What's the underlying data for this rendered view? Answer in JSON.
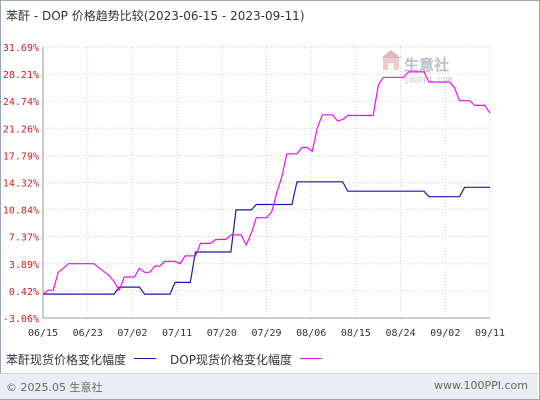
{
  "header": {
    "title": "苯酐 - DOP 价格趋势比较(2023-06-15 - 2023-09-11)"
  },
  "watermark": {
    "brand": "生意社",
    "url": "100PPI.COM"
  },
  "legend": {
    "items": [
      {
        "label": "苯酐现货价格变化幅度",
        "color": "#1a1aaa"
      },
      {
        "label": "DOP现货价格变化幅度",
        "color": "#ee11ee"
      }
    ]
  },
  "footer": {
    "copyright": "© 2025.05 生意社",
    "site": "www.100PPI.com"
  },
  "chart_data": {
    "type": "line",
    "title": "苯酐 - DOP 价格趋势比较(2023-06-15 - 2023-09-11)",
    "xlabel": "",
    "ylabel": "",
    "x_ticks": [
      "06/15",
      "06/23",
      "07/02",
      "07/11",
      "07/20",
      "07/29",
      "08/06",
      "08/15",
      "08/24",
      "09/02",
      "09/11"
    ],
    "y_ticks": [
      "31.69%",
      "28.21%",
      "24.74%",
      "21.26%",
      "17.79%",
      "14.32%",
      "10.84%",
      "7.37%",
      "3.89%",
      "0.42%",
      "-3.06%"
    ],
    "ylim": [
      -3.06,
      31.69
    ],
    "xlim": [
      "2023-06-15",
      "2023-09-11"
    ],
    "grid": true,
    "legend_position": "bottom",
    "series": [
      {
        "name": "苯酐现货价格变化幅度",
        "color": "#1a1aaa",
        "points": [
          [
            "2023-06-15",
            0.0
          ],
          [
            "2023-06-29",
            0.0
          ],
          [
            "2023-06-30",
            0.9
          ],
          [
            "2023-07-04",
            0.9
          ],
          [
            "2023-07-05",
            0.0
          ],
          [
            "2023-07-10",
            0.0
          ],
          [
            "2023-07-11",
            1.5
          ],
          [
            "2023-07-14",
            1.5
          ],
          [
            "2023-07-15",
            5.4
          ],
          [
            "2023-07-22",
            5.4
          ],
          [
            "2023-07-23",
            10.8
          ],
          [
            "2023-07-26",
            10.8
          ],
          [
            "2023-07-27",
            11.5
          ],
          [
            "2023-08-03",
            11.5
          ],
          [
            "2023-08-04",
            14.4
          ],
          [
            "2023-08-13",
            14.4
          ],
          [
            "2023-08-14",
            13.2
          ],
          [
            "2023-08-29",
            13.2
          ],
          [
            "2023-08-30",
            12.5
          ],
          [
            "2023-09-05",
            12.5
          ],
          [
            "2023-09-06",
            13.7
          ],
          [
            "2023-09-11",
            13.7
          ]
        ]
      },
      {
        "name": "DOP现货价格变化幅度",
        "color": "#ee11ee",
        "points": [
          [
            "2023-06-15",
            0.0
          ],
          [
            "2023-06-16",
            0.5
          ],
          [
            "2023-06-17",
            0.5
          ],
          [
            "2023-06-18",
            2.8
          ],
          [
            "2023-06-19",
            3.3
          ],
          [
            "2023-06-20",
            3.9
          ],
          [
            "2023-06-25",
            3.9
          ],
          [
            "2023-06-28",
            2.4
          ],
          [
            "2023-06-29",
            1.6
          ],
          [
            "2023-06-30",
            0.5
          ],
          [
            "2023-07-01",
            2.2
          ],
          [
            "2023-07-03",
            2.2
          ],
          [
            "2023-07-04",
            3.3
          ],
          [
            "2023-07-05",
            2.8
          ],
          [
            "2023-07-06",
            2.8
          ],
          [
            "2023-07-07",
            3.6
          ],
          [
            "2023-07-08",
            3.6
          ],
          [
            "2023-07-09",
            4.2
          ],
          [
            "2023-07-11",
            4.2
          ],
          [
            "2023-07-12",
            3.9
          ],
          [
            "2023-07-13",
            4.9
          ],
          [
            "2023-07-15",
            4.9
          ],
          [
            "2023-07-16",
            6.5
          ],
          [
            "2023-07-18",
            6.5
          ],
          [
            "2023-07-19",
            7.0
          ],
          [
            "2023-07-21",
            7.0
          ],
          [
            "2023-07-22",
            7.6
          ],
          [
            "2023-07-24",
            7.6
          ],
          [
            "2023-07-25",
            6.3
          ],
          [
            "2023-07-26",
            7.8
          ],
          [
            "2023-07-27",
            9.8
          ],
          [
            "2023-07-29",
            9.8
          ],
          [
            "2023-07-30",
            10.5
          ],
          [
            "2023-07-31",
            13.0
          ],
          [
            "2023-08-01",
            15.0
          ],
          [
            "2023-08-02",
            18.0
          ],
          [
            "2023-08-04",
            18.0
          ],
          [
            "2023-08-05",
            18.8
          ],
          [
            "2023-08-06",
            18.8
          ],
          [
            "2023-08-07",
            18.3
          ],
          [
            "2023-08-08",
            21.3
          ],
          [
            "2023-08-09",
            23.0
          ],
          [
            "2023-08-11",
            23.0
          ],
          [
            "2023-08-12",
            22.2
          ],
          [
            "2023-08-13",
            22.4
          ],
          [
            "2023-08-14",
            22.9
          ],
          [
            "2023-08-19",
            22.9
          ],
          [
            "2023-08-20",
            26.8
          ],
          [
            "2023-08-21",
            27.8
          ],
          [
            "2023-08-25",
            27.8
          ],
          [
            "2023-08-26",
            28.5
          ],
          [
            "2023-08-29",
            28.5
          ],
          [
            "2023-08-30",
            27.2
          ],
          [
            "2023-09-03",
            27.2
          ],
          [
            "2023-09-04",
            26.5
          ],
          [
            "2023-09-05",
            24.8
          ],
          [
            "2023-09-07",
            24.8
          ],
          [
            "2023-09-08",
            24.2
          ],
          [
            "2023-09-10",
            24.2
          ],
          [
            "2023-09-11",
            23.2
          ]
        ]
      }
    ]
  }
}
